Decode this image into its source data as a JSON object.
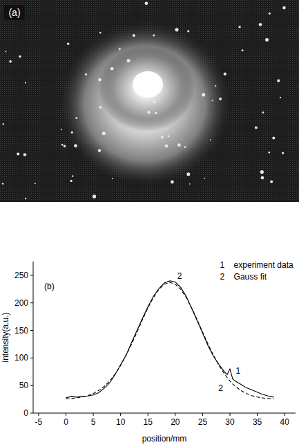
{
  "image": {
    "panel_label": "(a)"
  },
  "chart_data": {
    "type": "line",
    "panel_label": "(b)",
    "x_label": "position/mm",
    "y_label": "intensity(a.u.)",
    "x": [
      0,
      1,
      2,
      3,
      4,
      5,
      6,
      7,
      8,
      9,
      10,
      11,
      12,
      13,
      14,
      15,
      16,
      17,
      18,
      19,
      20,
      21,
      22,
      23,
      24,
      25,
      26,
      27,
      28,
      29,
      29.5,
      30,
      30.5,
      31,
      32,
      33,
      34,
      35,
      36,
      37,
      38
    ],
    "series": [
      {
        "name": "experiment data",
        "legend_key": "1",
        "color": "#000000",
        "line_style": "solid",
        "values": [
          28,
          30,
          29,
          30,
          31,
          33,
          37,
          45,
          55,
          70,
          88,
          105,
          128,
          150,
          172,
          193,
          212,
          226,
          236,
          240,
          238,
          228,
          212,
          190,
          168,
          145,
          122,
          103,
          88,
          75,
          70,
          80,
          62,
          58,
          52,
          46,
          42,
          38,
          34,
          31,
          29
        ]
      },
      {
        "name": "Gauss fit",
        "legend_key": "2",
        "color": "#000000",
        "line_style": "dashed",
        "values": [
          25.9,
          26.5,
          27.5,
          29.2,
          31.8,
          35.6,
          41,
          48.3,
          58.3,
          71,
          86.5,
          104.7,
          125,
          147,
          169.6,
          191,
          209.7,
          224.5,
          234,
          237,
          234,
          224.5,
          209.7,
          191,
          169.6,
          147,
          125,
          104.7,
          86.5,
          71,
          64.3,
          58.3,
          53,
          48.3,
          41,
          35.6,
          31.8,
          29.2,
          27.5,
          26.5,
          25.9
        ]
      }
    ],
    "annotations": [
      {
        "text": "1",
        "x": 31.5,
        "y": 72
      },
      {
        "text": "2",
        "x": 28.3,
        "y": 40
      },
      {
        "text": "2",
        "x": 20.8,
        "y": 243
      }
    ],
    "xlim": [
      -6,
      42
    ],
    "xticks": [
      -5,
      0,
      5,
      10,
      15,
      20,
      25,
      30,
      35,
      40
    ],
    "ylim": [
      0,
      275
    ],
    "yticks": [
      0,
      50,
      100,
      150,
      200,
      250
    ],
    "grid": false,
    "legend": "top-right"
  }
}
